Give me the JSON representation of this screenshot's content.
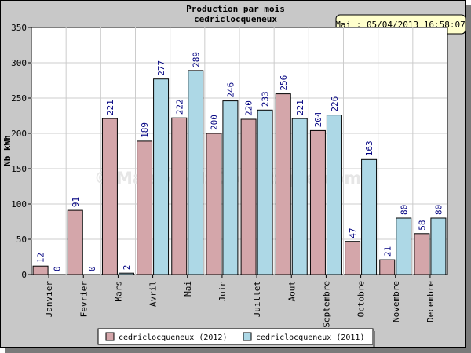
{
  "header": {
    "title_line1": "Production par mois",
    "title_line2": "cedriclocqueneux",
    "update_badge": "Maj : 05/04/2013 16:58:07"
  },
  "watermark": "© Maison-et-Domotique.com",
  "colors": {
    "frame_bg": "#c8c8c8",
    "plot_bg": "#ffffff",
    "series_2012": "#d4a6aa",
    "series_2011": "#add8e6",
    "badge_bg": "#ffffcc",
    "label_text": "#000080",
    "grid": "#cccccc"
  },
  "chart_data": {
    "type": "bar",
    "ylabel": "Nb kWh",
    "ylim": [
      0,
      350
    ],
    "yticks": [
      0,
      50,
      100,
      150,
      200,
      250,
      300,
      350
    ],
    "grid": true,
    "legend_position": "bottom",
    "categories": [
      "Janvier",
      "Fevrier",
      "Mars",
      "Avril",
      "Mai",
      "Juin",
      "Juillet",
      "Aout",
      "Septembre",
      "Octobre",
      "Novembre",
      "Decembre"
    ],
    "series": [
      {
        "name": "cedriclocqueneux (2012)",
        "values": [
          12,
          91,
          221,
          189,
          222,
          200,
          220,
          256,
          204,
          47,
          21,
          58
        ]
      },
      {
        "name": "cedriclocqueneux (2011)",
        "values": [
          0,
          0,
          2,
          277,
          289,
          246,
          233,
          221,
          226,
          163,
          80,
          80
        ]
      }
    ]
  }
}
